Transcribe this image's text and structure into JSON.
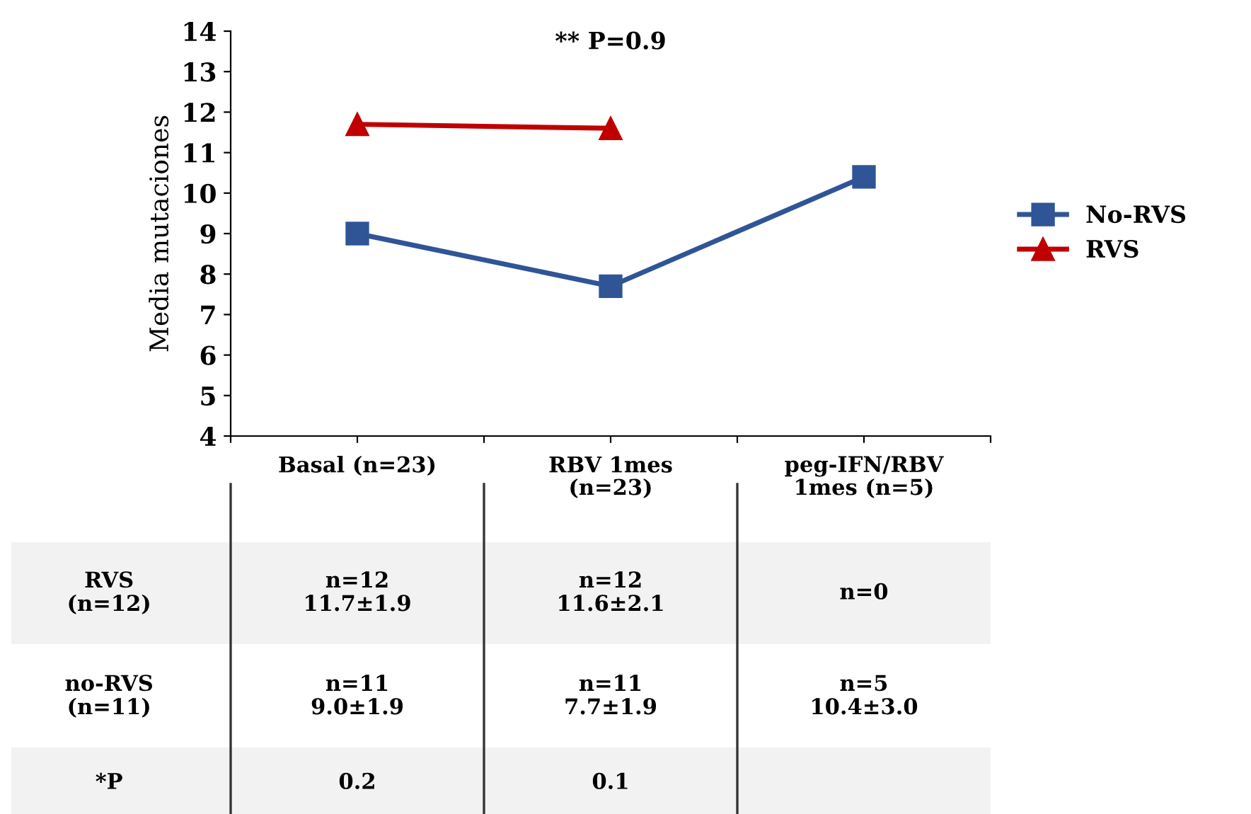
{
  "chart_data": {
    "type": "line",
    "ylabel": "Media mutaciones",
    "categories": [
      "Basal (n=23)",
      "RBV 1mes\n(n=23)",
      "peg-IFN/RBV\n1mes (n=5)"
    ],
    "series": [
      {
        "name": "No-RVS",
        "color": "#2f5597",
        "marker": "square",
        "values": [
          9.0,
          7.7,
          10.4
        ],
        "value_labels": [
          "n=11\n9.0±1.9",
          "n=11\n7.7±1.9",
          "n=5\n10.4±3.0"
        ]
      },
      {
        "name": "RVS",
        "color": "#c00000",
        "marker": "triangle",
        "values": [
          11.7,
          11.6,
          null
        ],
        "value_labels": [
          "n=12\n11.7±1.9",
          "n=12\n11.6±2.1",
          "n=0"
        ]
      }
    ],
    "ylim": [
      4,
      14
    ],
    "yticks": [
      4,
      5,
      6,
      7,
      8,
      9,
      10,
      11,
      12,
      13,
      14
    ],
    "grid": false,
    "legend": "right",
    "line_style": "solid",
    "annotations": [
      "** P=0.9",
      "no-RVS\n(n=11)",
      "RVS\n(n=12)",
      "*P",
      "0.2",
      "0.1"
    ]
  }
}
